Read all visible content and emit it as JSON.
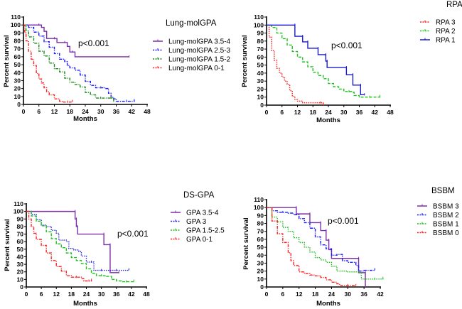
{
  "chart_data": [
    {
      "type": "line",
      "subtype": "kaplan-meier",
      "title": "Lung-molGPA",
      "xlabel": "Months",
      "ylabel": "Percent survival",
      "xlim": [
        0,
        48
      ],
      "ylim": [
        0,
        110
      ],
      "xticks": [
        0,
        6,
        12,
        18,
        24,
        30,
        36,
        42,
        48
      ],
      "yticks": [
        0,
        10,
        20,
        30,
        40,
        50,
        60,
        70,
        80,
        90,
        100,
        110
      ],
      "annotation": "p<0.001",
      "legend_position": "right",
      "series": [
        {
          "name": "Lung-molGPA 3.5-4",
          "color": "#7b2fa8",
          "dash": "solid",
          "x": [
            0,
            6,
            7,
            8,
            9,
            12,
            13,
            16,
            17,
            18,
            19,
            20,
            41
          ],
          "y": [
            100,
            100,
            97,
            92,
            83,
            83,
            78,
            78,
            73,
            66,
            66,
            60,
            60
          ]
        },
        {
          "name": "Lung-molGPA 2.5-3",
          "color": "#1a1aff",
          "dash": "dashdot",
          "x": [
            0,
            2,
            4,
            6,
            8,
            10,
            12,
            14,
            16,
            17,
            18,
            20,
            22,
            24,
            26,
            28,
            30,
            32,
            33,
            34,
            35,
            36,
            40,
            43
          ],
          "y": [
            100,
            97,
            91,
            86,
            79,
            72,
            64,
            57,
            54,
            49,
            46,
            43,
            37,
            29,
            24,
            21,
            21,
            20,
            14,
            9,
            7,
            4,
            4,
            5
          ]
        },
        {
          "name": "Lung-molGPA 1.5-2",
          "color": "#1a8a1a",
          "dash": "dashdot",
          "x": [
            0,
            1,
            2,
            4,
            6,
            8,
            10,
            12,
            14,
            16,
            18,
            20,
            22,
            24,
            26,
            28,
            30,
            34,
            35
          ],
          "y": [
            100,
            93,
            85,
            77,
            67,
            61,
            52,
            45,
            41,
            33,
            28,
            25,
            22,
            15,
            12,
            8,
            8,
            8,
            4
          ]
        },
        {
          "name": "Lung-molGPA 0-1",
          "color": "#ff2020",
          "dash": "dashdot",
          "x": [
            0,
            0.5,
            1,
            2,
            3,
            4,
            5,
            6,
            7,
            8,
            9,
            10,
            12,
            14,
            15,
            17,
            19
          ],
          "y": [
            100,
            90,
            80,
            67,
            57,
            49,
            39,
            32,
            27,
            21,
            16,
            12,
            7,
            4,
            3,
            3,
            4
          ]
        }
      ]
    },
    {
      "type": "line",
      "subtype": "kaplan-meier",
      "title": "RPA",
      "xlabel": "Months",
      "ylabel": "Percent survival",
      "xlim": [
        0,
        48
      ],
      "ylim": [
        0,
        110
      ],
      "xticks": [
        0,
        6,
        12,
        18,
        24,
        30,
        36,
        42,
        48
      ],
      "yticks": [
        0,
        10,
        20,
        30,
        40,
        50,
        60,
        70,
        80,
        90,
        100,
        110
      ],
      "annotation": "p<0.001",
      "legend_position": "right",
      "series": [
        {
          "name": "RPA 3",
          "color": "#ff2020",
          "dash": "dotted",
          "x": [
            0,
            1,
            2,
            3,
            4,
            5,
            6,
            7,
            8,
            9,
            10,
            11,
            12,
            14,
            21,
            22
          ],
          "y": [
            100,
            85,
            68,
            56,
            46,
            40,
            35,
            30,
            26,
            18,
            11,
            7,
            5,
            3,
            3,
            0
          ]
        },
        {
          "name": "RPA 2",
          "color": "#1fc11f",
          "dash": "dashed",
          "x": [
            0,
            2,
            4,
            6,
            8,
            10,
            12,
            14,
            16,
            18,
            20,
            22,
            24,
            26,
            28,
            30,
            32,
            33,
            34,
            36,
            40,
            44
          ],
          "y": [
            100,
            97,
            90,
            83,
            75,
            67,
            60,
            54,
            48,
            41,
            37,
            33,
            27,
            23,
            20,
            17,
            17,
            16,
            12,
            10,
            10,
            11
          ]
        },
        {
          "name": "RPA 1",
          "color": "#1a1acc",
          "dash": "solid",
          "x": [
            0,
            11,
            11,
            14,
            14,
            16,
            16,
            20,
            20,
            23,
            23,
            23.5,
            23.5,
            31,
            31,
            33.5,
            33.5,
            36.5,
            36.5,
            38
          ],
          "y": [
            100,
            100,
            86,
            86,
            79,
            79,
            71,
            71,
            63,
            63,
            55,
            55,
            47,
            47,
            38,
            38,
            25,
            25,
            13,
            13
          ]
        }
      ]
    },
    {
      "type": "line",
      "subtype": "kaplan-meier",
      "title": "DS-GPA",
      "xlabel": "Months",
      "ylabel": "Percent survival",
      "xlim": [
        0,
        48
      ],
      "ylim": [
        0,
        110
      ],
      "xticks": [
        0,
        6,
        12,
        18,
        24,
        30,
        36,
        42,
        48
      ],
      "yticks": [
        0,
        10,
        20,
        30,
        40,
        50,
        60,
        70,
        80,
        90,
        100,
        110
      ],
      "annotation": "p<0.001",
      "legend_position": "right",
      "series": [
        {
          "name": "GPA 3.5-4",
          "color": "#7b2fa8",
          "dash": "solid",
          "x": [
            0,
            19.5,
            19.5,
            20,
            20,
            20.5,
            20.5,
            31,
            31,
            33.5,
            33.5,
            37
          ],
          "y": [
            100,
            100,
            90,
            90,
            80,
            80,
            70,
            70,
            56,
            56,
            19,
            19
          ]
        },
        {
          "name": "GPA 3",
          "color": "#2a2ad8",
          "dash": "dotted",
          "x": [
            0,
            2,
            4,
            6,
            8,
            10,
            12,
            13,
            16,
            17,
            19,
            21,
            22,
            24,
            26,
            27,
            30,
            36,
            41
          ],
          "y": [
            100,
            96,
            89,
            82,
            80,
            75,
            71,
            62,
            60,
            51,
            49,
            47,
            41,
            33,
            33,
            22,
            22,
            22,
            23
          ]
        },
        {
          "name": "GPA 1.5-2.5",
          "color": "#1fc11f",
          "dash": "dashed",
          "x": [
            0,
            2,
            4,
            6,
            8,
            10,
            12,
            14,
            16,
            18,
            20,
            22,
            24,
            26,
            28,
            30,
            32,
            34,
            36,
            38,
            40,
            43
          ],
          "y": [
            100,
            94,
            87,
            81,
            73,
            64,
            57,
            52,
            45,
            39,
            35,
            31,
            24,
            18,
            15,
            15,
            14,
            10,
            8,
            7,
            7,
            8
          ]
        },
        {
          "name": "GPA 0-1",
          "color": "#ff2020",
          "dash": "dashdot",
          "x": [
            0,
            1,
            2,
            3,
            4,
            6,
            8,
            10,
            12,
            14,
            16,
            18,
            20,
            22,
            23,
            25,
            26
          ],
          "y": [
            100,
            90,
            80,
            71,
            63,
            55,
            45,
            35,
            27,
            21,
            15,
            13,
            13,
            11,
            8,
            8,
            9
          ]
        }
      ]
    },
    {
      "type": "line",
      "subtype": "kaplan-meier",
      "title": "BSBM",
      "xlabel": "Months",
      "ylabel": "Percent survival",
      "xlim": [
        0,
        42
      ],
      "ylim": [
        0,
        110
      ],
      "xticks": [
        0,
        6,
        12,
        18,
        24,
        30,
        36,
        42
      ],
      "yticks": [
        0,
        10,
        20,
        30,
        40,
        50,
        60,
        70,
        80,
        90,
        100,
        110
      ],
      "annotation": "p<0.001",
      "legend_position": "right",
      "series": [
        {
          "name": "BSBM 3",
          "color": "#7b2fa8",
          "dash": "solid",
          "x": [
            0,
            11,
            11,
            16,
            16,
            20,
            20,
            22,
            22,
            23,
            23,
            24,
            24,
            34,
            34,
            36.5,
            36.5
          ],
          "y": [
            100,
            100,
            92,
            92,
            81,
            81,
            71,
            71,
            59,
            59,
            47,
            47,
            36,
            36,
            18,
            18,
            0
          ]
        },
        {
          "name": "BSBM 2",
          "color": "#1a1aff",
          "dash": "dashdot",
          "x": [
            0,
            2,
            4,
            6,
            8,
            10,
            12,
            14,
            16,
            18,
            20,
            22,
            24,
            26,
            28,
            30,
            33,
            34,
            36,
            40
          ],
          "y": [
            100,
            96,
            94,
            94,
            93,
            91,
            86,
            81,
            74,
            63,
            53,
            48,
            40,
            41,
            33,
            31,
            27,
            20,
            21,
            22
          ]
        },
        {
          "name": "BSBM 1",
          "color": "#1fc11f",
          "dash": "dotted",
          "x": [
            0,
            2,
            4,
            6,
            8,
            10,
            12,
            14,
            16,
            18,
            20,
            22,
            24,
            26,
            30,
            34,
            35,
            40,
            43
          ],
          "y": [
            100,
            88,
            82,
            75,
            70,
            62,
            56,
            50,
            44,
            37,
            34,
            31,
            26,
            20,
            19,
            18,
            10,
            10,
            11
          ]
        },
        {
          "name": "BSBM 0",
          "color": "#ff2020",
          "dash": "dashdot",
          "x": [
            0,
            2,
            4,
            6,
            8,
            9,
            10,
            12,
            14,
            16,
            18,
            20,
            22,
            24,
            26,
            27,
            30,
            33
          ],
          "y": [
            100,
            83,
            67,
            56,
            43,
            33,
            27,
            19,
            17,
            15,
            14,
            12,
            9,
            6,
            4,
            2,
            2,
            2
          ]
        }
      ]
    }
  ]
}
